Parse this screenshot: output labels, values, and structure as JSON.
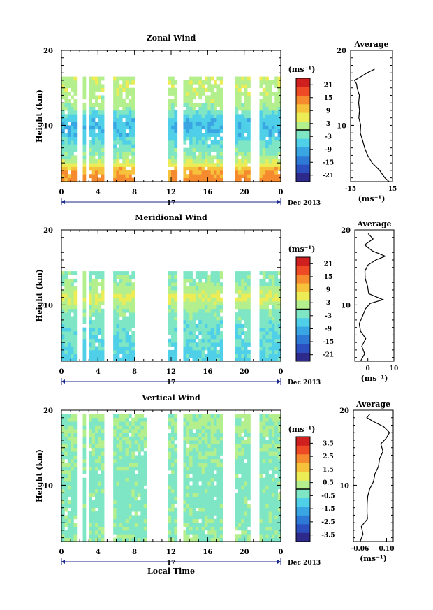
{
  "colors": {
    "scale": [
      "#2e2a8c",
      "#2c4fbf",
      "#2e79d6",
      "#39a6e3",
      "#4fd0e8",
      "#7ee6c4",
      "#b4ef8d",
      "#ecec56",
      "#f6c23c",
      "#f58a2e",
      "#ee4a26",
      "#cf1f1f"
    ],
    "axis": "#000000",
    "time_bar": "#1b2a8a"
  },
  "chart_data": [
    {
      "type": "heatmap",
      "title": "Zonal Wind",
      "ylabel": "Height (km)",
      "ylim": [
        2.5,
        20
      ],
      "yticks": [
        "20",
        "10"
      ],
      "xticks": [
        "0",
        "4",
        "8",
        "12",
        "16",
        "20",
        "0"
      ],
      "date_label": "17",
      "month_label": "Dec 2013",
      "unit_label": "(ms⁻¹)",
      "colorbar": {
        "ticks": [
          "21",
          "15",
          "9",
          "3",
          "-3",
          "-9",
          "-15",
          "-21"
        ],
        "range": [
          -24,
          24
        ]
      },
      "heights_km": [
        2.5,
        4,
        5,
        6,
        7,
        8,
        9,
        10,
        11,
        12,
        13,
        14,
        15
      ],
      "field_m_s": [
        14,
        12,
        4,
        0,
        -2,
        -4,
        -7,
        -8,
        -6,
        -1,
        2,
        2,
        3
      ],
      "data_gaps_hour": [
        1.8,
        2.2,
        2.8,
        5.0,
        5.6,
        8.3,
        9.0,
        9.5,
        10.0,
        10.5,
        11.0,
        11.5,
        13.0,
        18.0,
        18.7,
        21.0,
        21.5
      ],
      "average": {
        "title": "Average",
        "xticks": [
          "-15",
          "15"
        ],
        "xlim": [
          -15,
          15
        ],
        "yticks": [
          "20",
          "10"
        ],
        "unit_label": "(ms⁻¹)",
        "x": [
          13,
          10,
          6,
          1,
          -3,
          -5,
          -7,
          -8,
          -8,
          -9,
          -9,
          -9,
          -9,
          -10,
          -11,
          -12,
          -7,
          -3,
          2
        ],
        "y": [
          2.5,
          3,
          4,
          5,
          6,
          7,
          8,
          9,
          10,
          11,
          12,
          13,
          14,
          15,
          15.5,
          16,
          16.5,
          17,
          17.5
        ]
      }
    },
    {
      "type": "heatmap",
      "title": "Meridional Wind",
      "ylabel": "Height (km)",
      "ylim": [
        2.5,
        20
      ],
      "yticks": [
        "20",
        "10"
      ],
      "xticks": [
        "0",
        "4",
        "8",
        "12",
        "16",
        "20",
        "0"
      ],
      "date_label": "17",
      "month_label": "Dec 2013",
      "unit_label": "(ms⁻¹)",
      "colorbar": {
        "ticks": [
          "21",
          "15",
          "9",
          "3",
          "-3",
          "-9",
          "-15",
          "-21"
        ],
        "range": [
          -24,
          24
        ]
      },
      "heights_km": [
        2.5,
        4,
        5,
        6,
        7,
        8,
        9,
        10,
        11,
        12,
        13,
        14,
        15
      ],
      "field_m_s": [
        -6,
        -5,
        -4,
        -4,
        -3,
        -2,
        -1,
        2,
        6,
        2,
        0,
        -1,
        -2
      ],
      "data_gaps_hour": [
        1.8,
        2.2,
        2.8,
        5.0,
        5.6,
        8.3,
        9.0,
        9.5,
        10.0,
        10.5,
        11.0,
        11.5,
        13.0,
        18.0,
        18.7,
        21.0,
        21.5
      ],
      "average": {
        "title": "Average",
        "xticks": [
          "0",
          "10"
        ],
        "xlim": [
          -5,
          10
        ],
        "yticks": [
          "20",
          "10"
        ],
        "unit_label": "(ms⁻¹)",
        "x": [
          -3,
          -1,
          -2,
          -1,
          -3,
          -3,
          -2,
          -1,
          1,
          6,
          0,
          0,
          -1,
          -1,
          0,
          3,
          7,
          2,
          -1,
          2,
          0
        ],
        "y": [
          2.5,
          3.5,
          4.5,
          5.5,
          6.5,
          7.5,
          8.5,
          9.5,
          10.2,
          10.7,
          11.5,
          12.5,
          13.5,
          14.5,
          15.3,
          16,
          16.5,
          17.2,
          18,
          18.8,
          19.5
        ]
      }
    },
    {
      "type": "heatmap",
      "title": "Vertical Wind",
      "ylabel": "Height (km)",
      "ylim": [
        2.5,
        20
      ],
      "yticks": [
        "20",
        "10"
      ],
      "xticks": [
        "0",
        "4",
        "8",
        "12",
        "16",
        "20",
        "0"
      ],
      "date_label": "17",
      "month_label": "Dec 2013",
      "unit_label": "(ms⁻¹)",
      "xlabel": "Local Time",
      "colorbar": {
        "ticks": [
          "3.5",
          "2.5",
          "1.5",
          "0.5",
          "-0.5",
          "-1.5",
          "-2.5",
          "-3.5"
        ],
        "range": [
          -4,
          4
        ]
      },
      "heights_km": [
        2.5,
        5,
        10,
        15,
        19
      ],
      "field_m_s": [
        0,
        -0.2,
        -0.3,
        -0.1,
        0.1
      ],
      "data_gaps_hour": [
        1.8,
        2.2,
        2.8,
        5.0,
        5.6,
        9.5,
        10.0,
        10.5,
        11.0,
        11.5,
        13.0,
        18.0,
        18.7,
        21.0,
        21.5
      ],
      "average": {
        "title": "Average",
        "xticks": [
          "-0.06",
          "0.10"
        ],
        "xlim": [
          -0.1,
          0.14
        ],
        "yticks": [
          "20",
          "10"
        ],
        "unit_label": "(ms⁻¹)",
        "x": [
          -0.06,
          -0.04,
          -0.05,
          -0.02,
          -0.02,
          -0.02,
          -0.01,
          0.0,
          0.02,
          0.03,
          0.05,
          0.06,
          0.08,
          0.06,
          0.1,
          0.12,
          0.08,
          0.02,
          -0.02,
          0.0
        ],
        "y": [
          2.5,
          3.5,
          4.5,
          5.5,
          6.5,
          7.5,
          8.5,
          9.5,
          10.5,
          11.5,
          12.5,
          13.5,
          14.5,
          15.5,
          16.2,
          17,
          17.8,
          18.5,
          19,
          19.5
        ]
      }
    }
  ]
}
